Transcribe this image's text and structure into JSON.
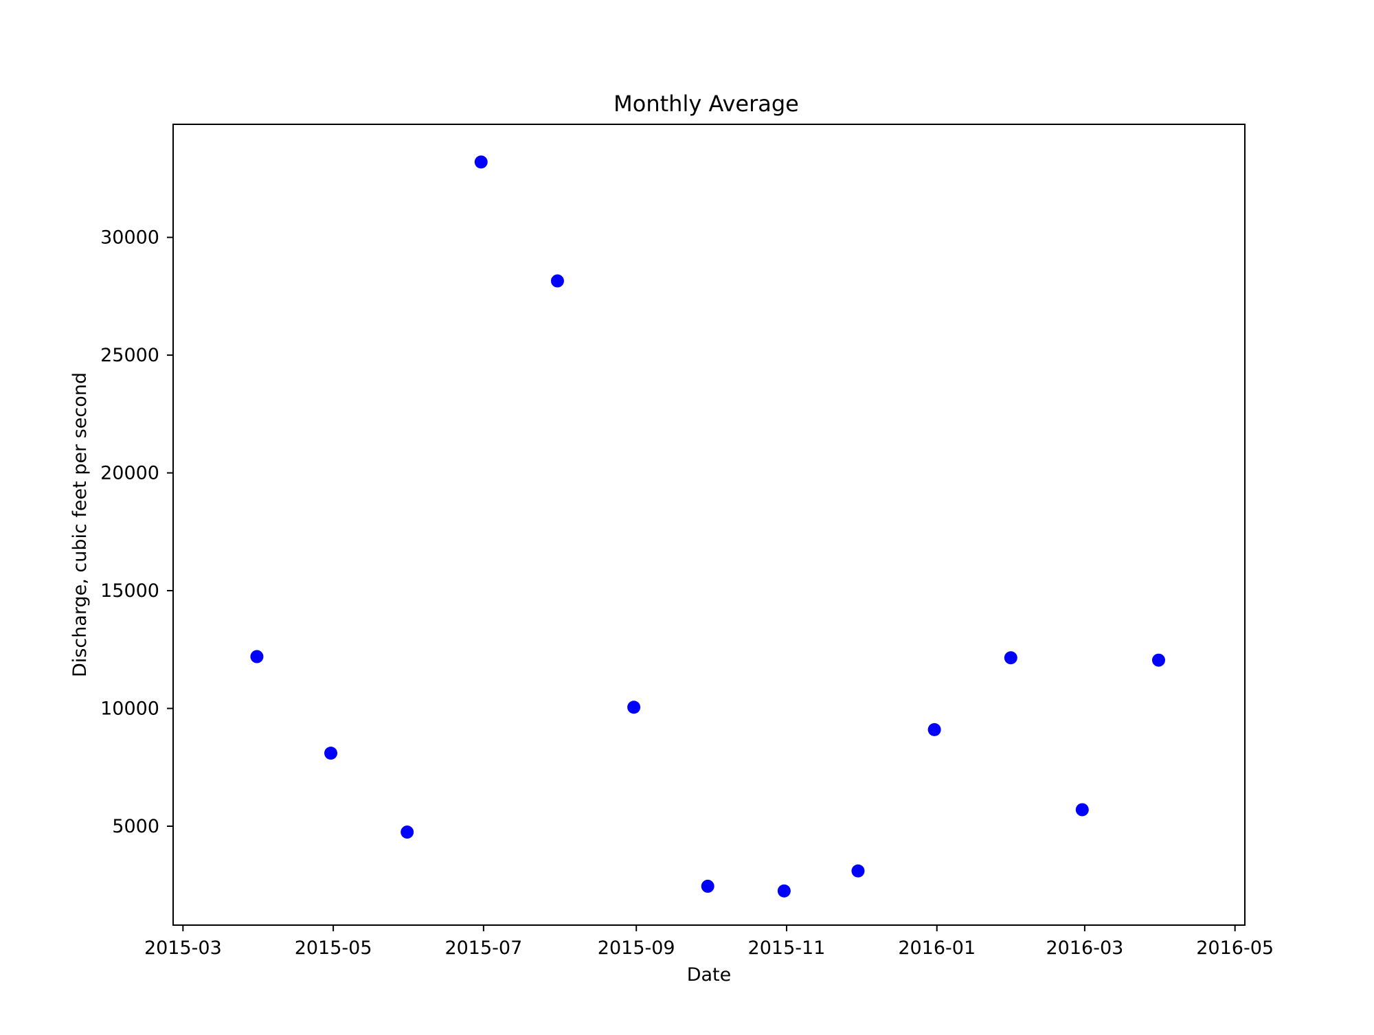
{
  "chart_data": {
    "type": "scatter",
    "title": "Monthly Average",
    "xlabel": "Date",
    "ylabel": "Discharge, cubic feet per second",
    "x_tick_labels": [
      "2015-03",
      "2015-05",
      "2015-07",
      "2015-09",
      "2015-11",
      "2016-01",
      "2016-03",
      "2016-05"
    ],
    "x_tick_values": [
      "2015-03-01",
      "2015-05-01",
      "2015-07-01",
      "2015-09-01",
      "2015-11-01",
      "2016-01-01",
      "2016-03-01",
      "2016-05-01"
    ],
    "y_ticks": [
      5000,
      10000,
      15000,
      20000,
      25000,
      30000
    ],
    "xlim": [
      "2015-02-25",
      "2016-05-05"
    ],
    "ylim": [
      800,
      34800
    ],
    "grid": false,
    "marker_color": "#0000ff",
    "series": [
      {
        "x": [
          "2015-03-31",
          "2015-04-30",
          "2015-05-31",
          "2015-06-30",
          "2015-07-31",
          "2015-08-31",
          "2015-09-30",
          "2015-10-31",
          "2015-11-30",
          "2015-12-31",
          "2016-01-31",
          "2016-02-29",
          "2016-03-31"
        ],
        "y": [
          12200,
          8100,
          4750,
          33200,
          28150,
          10050,
          2450,
          2250,
          3100,
          9100,
          12150,
          5700,
          12050
        ]
      }
    ]
  }
}
